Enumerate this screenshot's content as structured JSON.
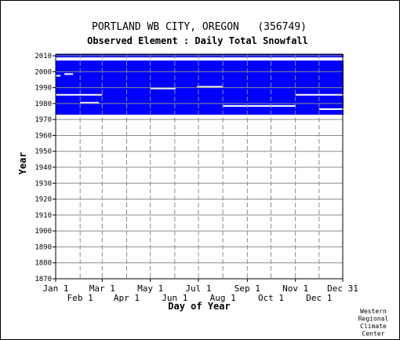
{
  "chart_data": {
    "type": "heatmap",
    "title": "PORTLAND WB CITY, OREGON   (356749)",
    "subtitle": "Observed Element : Daily Total Snowfall",
    "xlabel": "Day of Year",
    "ylabel": "Year",
    "ylim": [
      1870,
      2011
    ],
    "y_ticks": [
      2010,
      2000,
      1990,
      1980,
      1970,
      1960,
      1950,
      1940,
      1930,
      1920,
      1910,
      1900,
      1890,
      1880,
      1870
    ],
    "x_ticks_top_row": [
      "Jan 1",
      "Mar 1",
      "May 1",
      "Jul 1",
      "Sep 1",
      "Nov 1",
      "Dec 31"
    ],
    "x_ticks_bottom_row": [
      "Feb 1",
      "Apr 1",
      "Jun 1",
      "Aug 1",
      "Oct 1",
      "Dec 1"
    ],
    "grid": true,
    "data_coverage": [
      {
        "start_year": 1973,
        "end_year": 2006,
        "start_day": 1,
        "end_day": 365,
        "status": "data present"
      },
      {
        "start_year": 2009,
        "end_year": 2010,
        "start_day": 1,
        "end_day": 365,
        "status": "data present"
      }
    ],
    "gaps": [
      {
        "year": 1985,
        "start_day": 1,
        "end_day": 59
      },
      {
        "year": 1980,
        "start_day": 32,
        "end_day": 55
      },
      {
        "year": 1998,
        "start_day": 12,
        "end_day": 22
      },
      {
        "year": 1997,
        "start_day": 1,
        "end_day": 6
      },
      {
        "year": 1989,
        "start_day": 121,
        "end_day": 152
      },
      {
        "year": 1990,
        "start_day": 180,
        "end_day": 212
      },
      {
        "year": 1978,
        "start_day": 213,
        "end_day": 304
      },
      {
        "year": 1985,
        "start_day": 305,
        "end_day": 365
      },
      {
        "year": 1976,
        "start_day": 335,
        "end_day": 365
      }
    ],
    "color": "#0000ff"
  },
  "credit": [
    "Western",
    "Regional",
    "Climate",
    "Center"
  ]
}
